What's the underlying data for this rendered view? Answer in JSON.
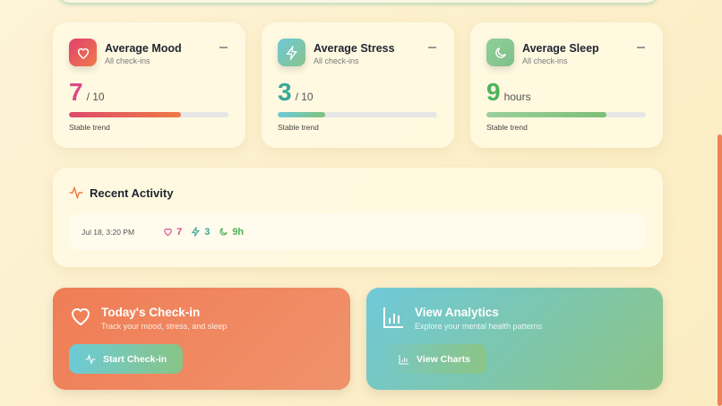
{
  "stats": [
    {
      "title": "Average Mood",
      "subtitle": "All check-ins",
      "value": "7",
      "unit": "/ 10",
      "progress_percent": 70,
      "trend": "Stable trend",
      "icon": "heart-icon",
      "color": "#e0407a"
    },
    {
      "title": "Average Stress",
      "subtitle": "All check-ins",
      "value": "3",
      "unit": "/ 10",
      "progress_percent": 30,
      "trend": "Stable trend",
      "icon": "lightning-icon",
      "color": "#3aa89a"
    },
    {
      "title": "Average Sleep",
      "subtitle": "All check-ins",
      "value": "9",
      "unit": "hours",
      "progress_percent": 75,
      "trend": "Stable trend",
      "icon": "moon-icon",
      "color": "#4cb35a"
    }
  ],
  "recent": {
    "title": "Recent Activity",
    "entries": [
      {
        "date": "Jul 18, 3:20 PM",
        "mood": "7",
        "stress": "3",
        "sleep": "9h"
      }
    ]
  },
  "checkin": {
    "title": "Today's Check-in",
    "subtitle": "Track your mood, stress, and sleep",
    "button": "Start Check-in"
  },
  "analytics": {
    "title": "View Analytics",
    "subtitle": "Explore your mental health patterns",
    "button": "View Charts"
  }
}
